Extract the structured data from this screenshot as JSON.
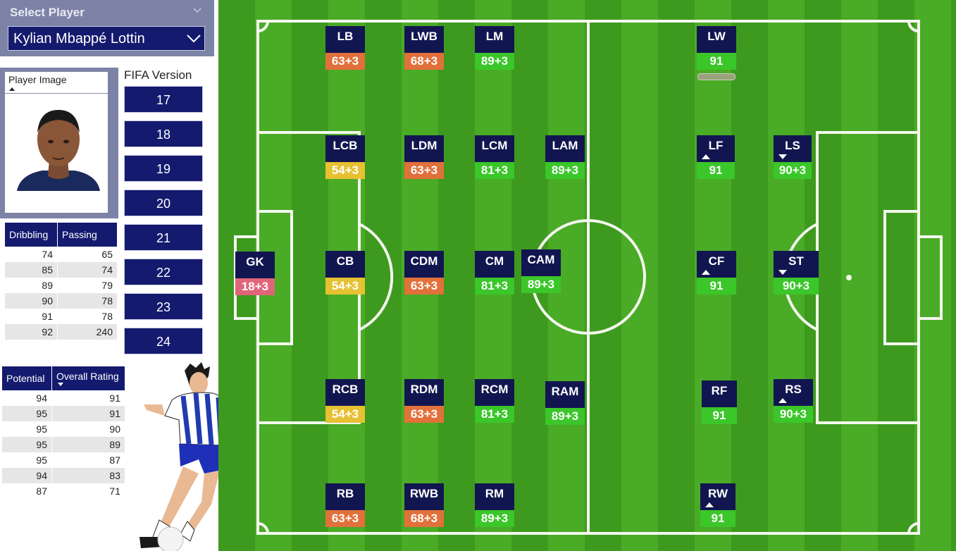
{
  "select_player": {
    "title": "Select Player",
    "selected": "Kylian Mbappé Lottin"
  },
  "player_image": {
    "header": "Player Image"
  },
  "fifa_version": {
    "label": "FIFA Version",
    "options": [
      "17",
      "18",
      "19",
      "20",
      "21",
      "22",
      "23",
      "24"
    ]
  },
  "skills_table": {
    "headers": [
      "Dribbling",
      "Passing"
    ],
    "rows": [
      [
        "74",
        "65"
      ],
      [
        "85",
        "74"
      ],
      [
        "89",
        "79"
      ],
      [
        "90",
        "78"
      ],
      [
        "91",
        "78"
      ],
      [
        "92",
        "240"
      ]
    ]
  },
  "rating_table": {
    "headers": [
      "Potential",
      "Overall Rating"
    ],
    "rows": [
      [
        "94",
        "91"
      ],
      [
        "95",
        "91"
      ],
      [
        "95",
        "90"
      ],
      [
        "95",
        "89"
      ],
      [
        "95",
        "87"
      ],
      [
        "94",
        "83"
      ],
      [
        "87",
        "71"
      ]
    ]
  },
  "colors": {
    "navy": "#141a6e",
    "green": "#3bc62a",
    "orange": "#e2703a",
    "yellow": "#e6c132",
    "red": "#e0657a"
  },
  "positions": [
    {
      "key": "gk",
      "label": "GK",
      "rating": "18+3",
      "color": "#e0657a"
    },
    {
      "key": "lb",
      "label": "LB",
      "rating": "63+3",
      "color": "#e2703a"
    },
    {
      "key": "lwb",
      "label": "LWB",
      "rating": "68+3",
      "color": "#e2703a"
    },
    {
      "key": "lm",
      "label": "LM",
      "rating": "89+3",
      "color": "#3bc62a"
    },
    {
      "key": "lw",
      "label": "LW",
      "rating": "91",
      "color": "#3bc62a"
    },
    {
      "key": "lcb",
      "label": "LCB",
      "rating": "54+3",
      "color": "#e6c132"
    },
    {
      "key": "ldm",
      "label": "LDM",
      "rating": "63+3",
      "color": "#e2703a"
    },
    {
      "key": "lcm",
      "label": "LCM",
      "rating": "81+3",
      "color": "#3bc62a"
    },
    {
      "key": "lam",
      "label": "LAM",
      "rating": "89+3",
      "color": "#3bc62a"
    },
    {
      "key": "lf",
      "label": "LF",
      "rating": "91",
      "color": "#3bc62a"
    },
    {
      "key": "ls",
      "label": "LS",
      "rating": "90+3",
      "color": "#3bc62a"
    },
    {
      "key": "cb",
      "label": "CB",
      "rating": "54+3",
      "color": "#e6c132"
    },
    {
      "key": "cdm",
      "label": "CDM",
      "rating": "63+3",
      "color": "#e2703a"
    },
    {
      "key": "cm",
      "label": "CM",
      "rating": "81+3",
      "color": "#3bc62a"
    },
    {
      "key": "cam",
      "label": "CAM",
      "rating": "89+3",
      "color": "#3bc62a"
    },
    {
      "key": "cf",
      "label": "CF",
      "rating": "91",
      "color": "#3bc62a"
    },
    {
      "key": "st",
      "label": "ST",
      "rating": "90+3",
      "color": "#3bc62a"
    },
    {
      "key": "rcb",
      "label": "RCB",
      "rating": "54+3",
      "color": "#e6c132"
    },
    {
      "key": "rdm",
      "label": "RDM",
      "rating": "63+3",
      "color": "#e2703a"
    },
    {
      "key": "rcm",
      "label": "RCM",
      "rating": "81+3",
      "color": "#3bc62a"
    },
    {
      "key": "ram",
      "label": "RAM",
      "rating": "89+3",
      "color": "#3bc62a"
    },
    {
      "key": "rf",
      "label": "RF",
      "rating": "91",
      "color": "#3bc62a"
    },
    {
      "key": "rs",
      "label": "RS",
      "rating": "90+3",
      "color": "#3bc62a"
    },
    {
      "key": "rb",
      "label": "RB",
      "rating": "63+3",
      "color": "#e2703a"
    },
    {
      "key": "rwb",
      "label": "RWB",
      "rating": "68+3",
      "color": "#e2703a"
    },
    {
      "key": "rm",
      "label": "RM",
      "rating": "89+3",
      "color": "#3bc62a"
    },
    {
      "key": "rw",
      "label": "RW",
      "rating": "91",
      "color": "#3bc62a"
    }
  ]
}
